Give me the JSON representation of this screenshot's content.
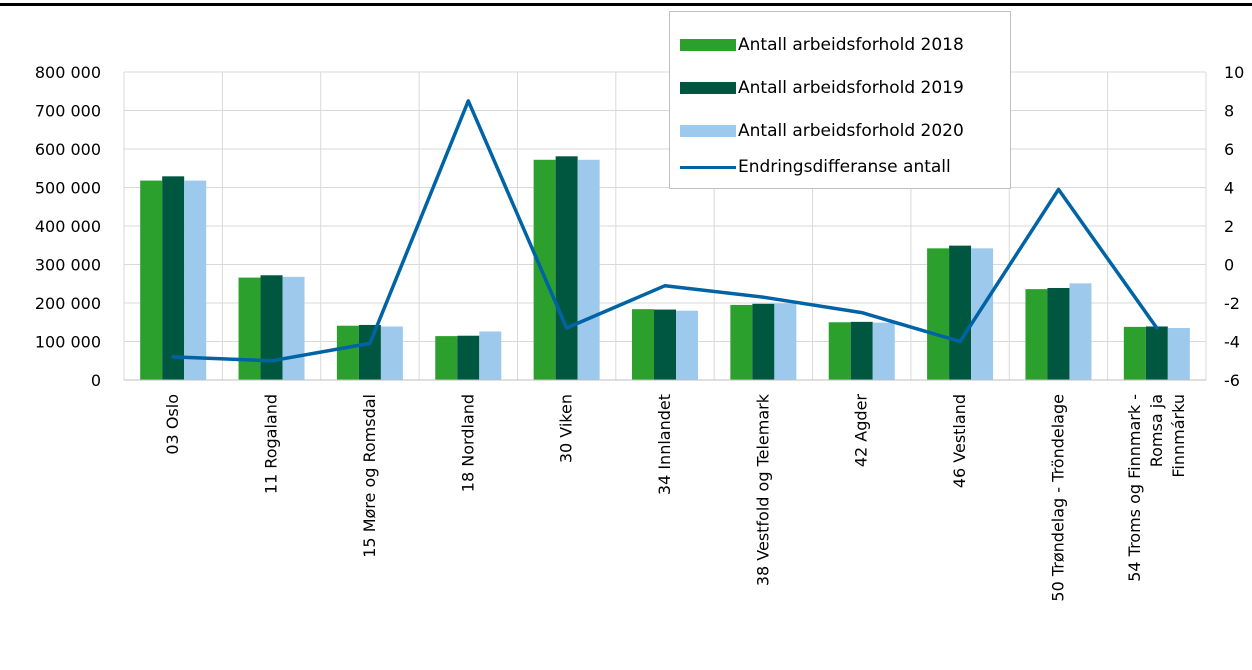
{
  "chart_data": {
    "type": "bar",
    "categories": [
      "03 Oslo",
      "11 Rogaland",
      "15 Møre og Romsdal",
      "18 Nordland",
      "30 Viken",
      "34 Innlandet",
      "38 Vestfold og Telemark",
      "42 Agder",
      "46 Vestland",
      "50 Trøndelag - Tröndelage",
      "54 Troms og Finnmark - Romsa ja Finnmárku"
    ],
    "category_lines": [
      [
        "03 Oslo"
      ],
      [
        "11 Rogaland"
      ],
      [
        "15 Møre og Romsdal"
      ],
      [
        "18 Nordland"
      ],
      [
        "30 Viken"
      ],
      [
        "34 Innlandet"
      ],
      [
        "38 Vestfold og Telemark"
      ],
      [
        "42 Agder"
      ],
      [
        "46 Vestland"
      ],
      [
        "50 Trøndelag - Tröndelage"
      ],
      [
        "54 Troms og Finnmark -",
        "Romsa ja",
        "Finnmárku"
      ]
    ],
    "series": [
      {
        "name": "Antall arbeidsforhold 2018",
        "kind": "bar",
        "axis": "left",
        "color": "#2ca02c",
        "values": [
          518000,
          266000,
          141000,
          114000,
          572000,
          184000,
          195000,
          150000,
          342000,
          236000,
          138000
        ]
      },
      {
        "name": "Antall arbeidsforhold 2019",
        "kind": "bar",
        "axis": "left",
        "color": "#00573f",
        "values": [
          529000,
          272000,
          143000,
          115000,
          581000,
          183000,
          198000,
          151000,
          349000,
          239000,
          139000
        ]
      },
      {
        "name": "Antall arbeidsforhold 2020",
        "kind": "bar",
        "axis": "left",
        "color": "#9dc9ec",
        "values": [
          518000,
          268000,
          139000,
          126000,
          572000,
          180000,
          199000,
          149000,
          342000,
          251000,
          135000
        ]
      },
      {
        "name": "Endringsdifferanse antall",
        "kind": "line",
        "axis": "right",
        "color": "#0063a5",
        "values": [
          -4.8,
          -5.0,
          -4.1,
          8.5,
          -3.3,
          -1.1,
          -1.7,
          -2.5,
          -4.0,
          3.9,
          -3.3
        ]
      }
    ],
    "y_left": {
      "min": 0,
      "max": 800000,
      "step": 100000,
      "tick_labels": [
        "0",
        "100 000",
        "200 000",
        "300 000",
        "400 000",
        "500 000",
        "600 000",
        "700 000",
        "800 000"
      ]
    },
    "y_right": {
      "min": -6,
      "max": 10,
      "step": 2,
      "tick_labels": [
        "-6",
        "-4",
        "-2",
        "0",
        "2",
        "4",
        "6",
        "8",
        "10"
      ]
    },
    "title": "",
    "xlabel": "",
    "ylabel": "",
    "grid": true,
    "legend_position": "top-right"
  }
}
